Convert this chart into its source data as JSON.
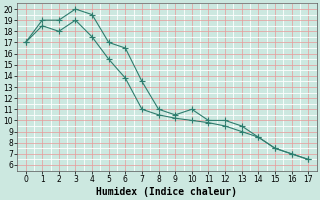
{
  "line1_x": [
    0,
    1,
    2,
    3,
    4,
    5,
    6,
    7,
    8,
    9,
    10,
    11,
    12,
    13,
    14,
    15,
    16,
    17
  ],
  "line1_y": [
    17.0,
    19.0,
    19.0,
    20.0,
    19.5,
    17.0,
    16.5,
    13.5,
    11.0,
    10.5,
    11.0,
    10.0,
    10.0,
    9.5,
    8.5,
    7.5,
    7.0,
    6.5
  ],
  "line2_x": [
    0,
    1,
    2,
    3,
    4,
    5,
    6,
    7,
    8,
    9,
    10,
    11,
    12,
    13,
    14,
    15,
    16,
    17
  ],
  "line2_y": [
    17.0,
    18.5,
    18.0,
    19.0,
    17.5,
    15.5,
    13.8,
    11.0,
    10.5,
    10.2,
    10.0,
    9.8,
    9.5,
    9.0,
    8.5,
    7.5,
    7.0,
    6.5
  ],
  "line_color": "#2e7d6e",
  "bg_color": "#cce8e0",
  "grid_color_major": "#e89898",
  "grid_color_minor": "#ffffff",
  "xlabel": "Humidex (Indice chaleur)",
  "xlim": [
    -0.5,
    17.5
  ],
  "ylim": [
    5.5,
    20.5
  ],
  "yticks": [
    6,
    7,
    8,
    9,
    10,
    11,
    12,
    13,
    14,
    15,
    16,
    17,
    18,
    19,
    20
  ],
  "xticks": [
    0,
    1,
    2,
    3,
    4,
    5,
    6,
    7,
    8,
    9,
    10,
    11,
    12,
    13,
    14,
    15,
    16,
    17
  ],
  "marker": "+",
  "markersize": 4,
  "linewidth": 0.8,
  "xlabel_fontsize": 7,
  "tick_fontsize": 5.5
}
